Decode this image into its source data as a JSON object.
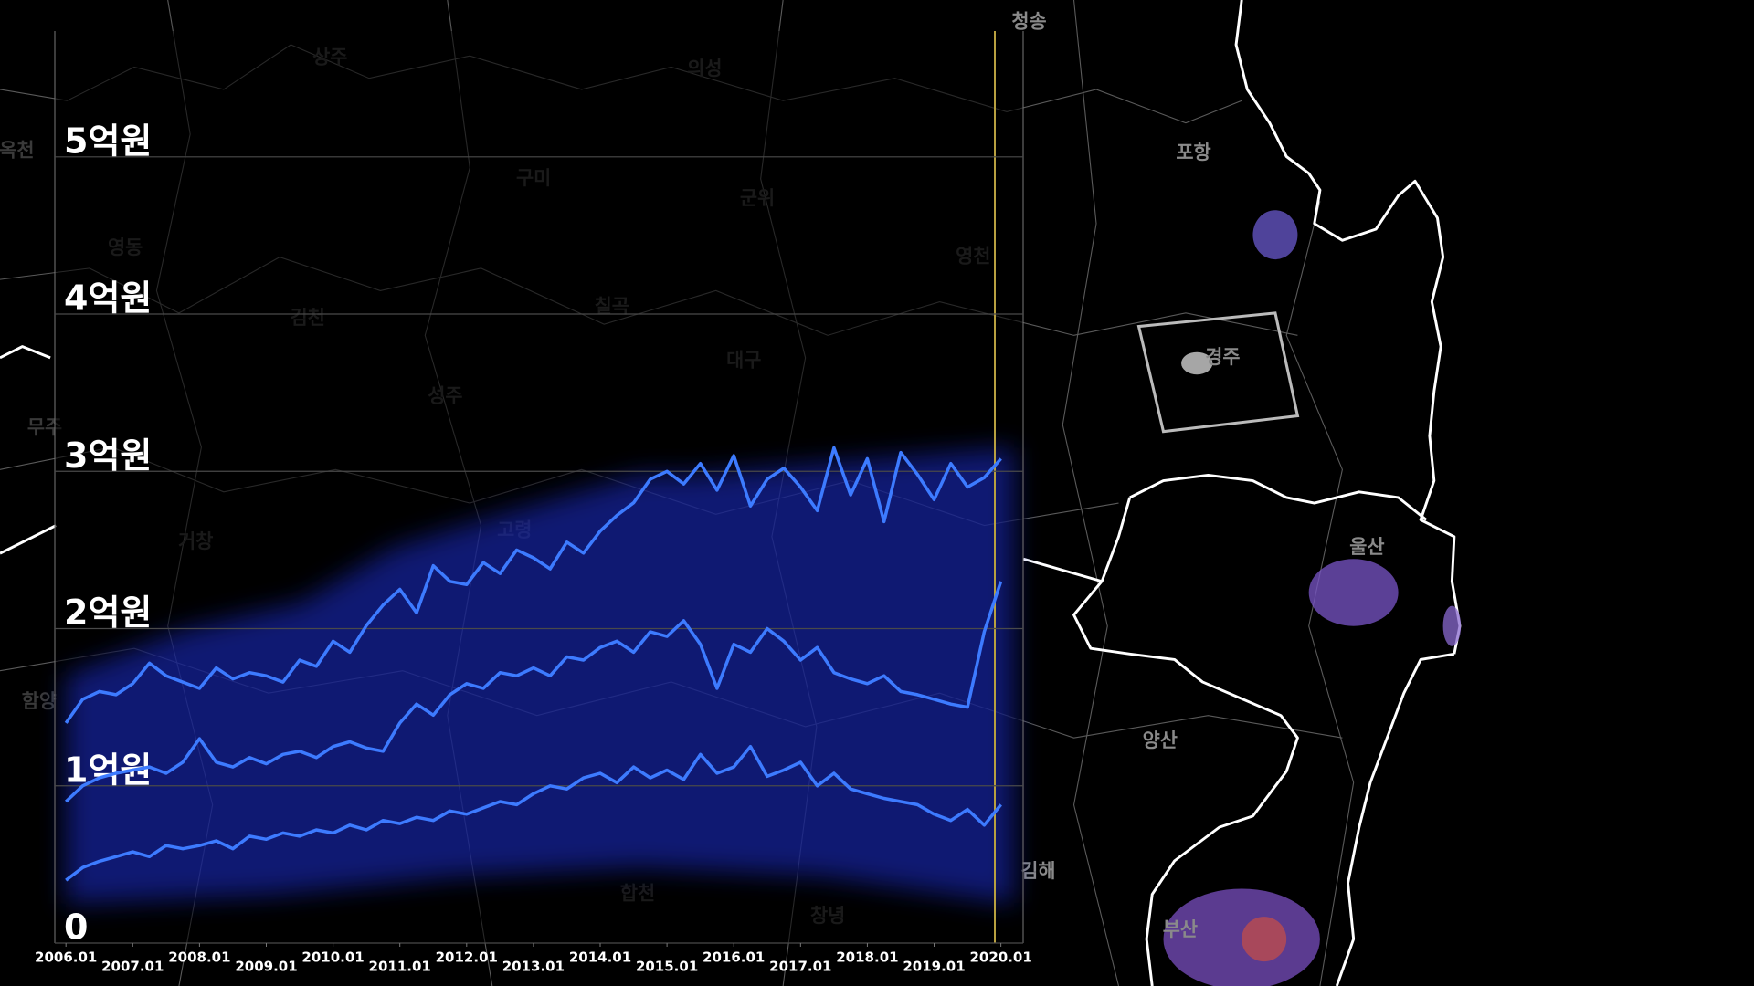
{
  "chart_data": {
    "type": "line",
    "x": [
      "2006.01",
      "2006.04",
      "2006.07",
      "2006.10",
      "2007.01",
      "2007.04",
      "2007.07",
      "2007.10",
      "2008.01",
      "2008.04",
      "2008.07",
      "2008.10",
      "2009.01",
      "2009.04",
      "2009.07",
      "2009.10",
      "2010.01",
      "2010.04",
      "2010.07",
      "2010.10",
      "2011.01",
      "2011.04",
      "2011.07",
      "2011.10",
      "2012.01",
      "2012.04",
      "2012.07",
      "2012.10",
      "2013.01",
      "2013.04",
      "2013.07",
      "2013.10",
      "2014.01",
      "2014.04",
      "2014.07",
      "2014.10",
      "2015.01",
      "2015.04",
      "2015.07",
      "2015.10",
      "2016.01",
      "2016.04",
      "2016.07",
      "2016.10",
      "2017.01",
      "2017.04",
      "2017.07",
      "2017.10",
      "2018.01",
      "2018.04",
      "2018.07",
      "2018.10",
      "2019.01",
      "2019.04",
      "2019.07",
      "2019.10",
      "2020.01"
    ],
    "xlim": [
      "2005.11",
      "2020.05"
    ],
    "xticks": [
      "2006.01",
      "2007.01",
      "2008.01",
      "2009.01",
      "2010.01",
      "2011.01",
      "2012.01",
      "2013.01",
      "2014.01",
      "2015.01",
      "2016.01",
      "2017.01",
      "2018.01",
      "2019.01",
      "2020.01"
    ],
    "ylim": [
      0,
      5.8
    ],
    "yticks": [
      0,
      {
        "value": 1,
        "label": "1억원"
      },
      {
        "value": 2,
        "label": "2억원"
      },
      {
        "value": 3,
        "label": "3억원"
      },
      {
        "value": 4,
        "label": "4억원"
      },
      {
        "value": 5,
        "label": "5억원"
      }
    ],
    "grid": true,
    "series": [
      {
        "color": "#3d7bff",
        "values": [
          1.4,
          1.55,
          1.6,
          1.58,
          1.65,
          1.78,
          1.7,
          1.66,
          1.62,
          1.75,
          1.68,
          1.72,
          1.7,
          1.66,
          1.8,
          1.76,
          1.92,
          1.85,
          2.02,
          2.15,
          2.25,
          2.1,
          2.4,
          2.3,
          2.28,
          2.42,
          2.35,
          2.5,
          2.45,
          2.38,
          2.55,
          2.48,
          2.62,
          2.72,
          2.8,
          2.95,
          3.0,
          2.92,
          3.05,
          2.88,
          3.1,
          2.78,
          2.95,
          3.02,
          2.9,
          2.75,
          3.15,
          2.85,
          3.08,
          2.68,
          3.12,
          2.98,
          2.82,
          3.05,
          2.9,
          2.96,
          3.08
        ]
      },
      {
        "color": "#3d7bff",
        "values": [
          0.9,
          1.0,
          1.05,
          1.08,
          1.1,
          1.12,
          1.08,
          1.15,
          1.3,
          1.15,
          1.12,
          1.18,
          1.14,
          1.2,
          1.22,
          1.18,
          1.25,
          1.28,
          1.24,
          1.22,
          1.4,
          1.52,
          1.45,
          1.58,
          1.65,
          1.62,
          1.72,
          1.7,
          1.75,
          1.7,
          1.82,
          1.8,
          1.88,
          1.92,
          1.85,
          1.98,
          1.95,
          2.05,
          1.9,
          1.62,
          1.9,
          1.85,
          2.0,
          1.92,
          1.8,
          1.88,
          1.72,
          1.68,
          1.65,
          1.7,
          1.6,
          1.58,
          1.55,
          1.52,
          1.5,
          1.98,
          2.3
        ]
      },
      {
        "color": "#3d7bff",
        "values": [
          0.4,
          0.48,
          0.52,
          0.55,
          0.58,
          0.55,
          0.62,
          0.6,
          0.62,
          0.65,
          0.6,
          0.68,
          0.66,
          0.7,
          0.68,
          0.72,
          0.7,
          0.75,
          0.72,
          0.78,
          0.76,
          0.8,
          0.78,
          0.84,
          0.82,
          0.86,
          0.9,
          0.88,
          0.95,
          1.0,
          0.98,
          1.05,
          1.08,
          1.02,
          1.12,
          1.05,
          1.1,
          1.04,
          1.2,
          1.08,
          1.12,
          1.25,
          1.06,
          1.1,
          1.15,
          1.0,
          1.08,
          0.98,
          0.95,
          0.92,
          0.9,
          0.88,
          0.82,
          0.78,
          0.85,
          0.75,
          0.88
        ]
      }
    ]
  },
  "map": {
    "labels": [
      "청송",
      "상주",
      "의성",
      "포항",
      "구미",
      "군위",
      "영동",
      "영천",
      "김천",
      "칠곡",
      "대구",
      "경주",
      "무주",
      "성주",
      "고령",
      "거창",
      "울산",
      "함양",
      "양산",
      "합천",
      "창녕",
      "김해",
      "부산",
      "옥천"
    ]
  }
}
